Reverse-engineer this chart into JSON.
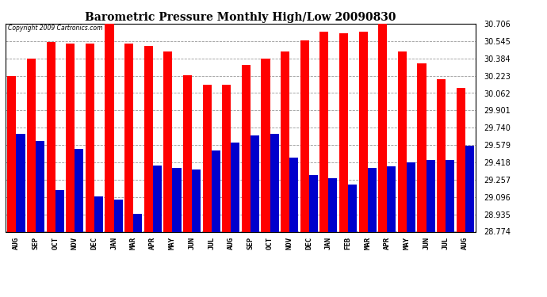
{
  "title": "Barometric Pressure Monthly High/Low 20090830",
  "copyright": "Copyright 2009 Cartronics.com",
  "months": [
    "AUG",
    "SEP",
    "OCT",
    "NOV",
    "DEC",
    "JAN",
    "MAR",
    "APR",
    "MAY",
    "JUN",
    "JUL",
    "AUG",
    "SEP",
    "OCT",
    "NOV",
    "DEC",
    "JAN",
    "FEB",
    "MAR",
    "APR",
    "MAY",
    "JUN",
    "JUL",
    "AUG"
  ],
  "highs": [
    30.22,
    30.38,
    30.54,
    30.52,
    30.52,
    30.71,
    30.52,
    30.5,
    30.45,
    30.23,
    30.14,
    30.14,
    30.32,
    30.38,
    30.45,
    30.55,
    30.63,
    30.62,
    30.63,
    30.71,
    30.45,
    30.34,
    30.19,
    30.11
  ],
  "lows": [
    29.68,
    29.62,
    29.16,
    29.54,
    29.1,
    29.07,
    28.94,
    29.39,
    29.37,
    29.35,
    29.53,
    29.6,
    29.67,
    29.68,
    29.46,
    29.3,
    29.27,
    29.21,
    29.37,
    29.38,
    29.42,
    29.44,
    29.44,
    29.57
  ],
  "high_color": "#ff0000",
  "low_color": "#0000cc",
  "bg_color": "#ffffff",
  "plot_bg_color": "#ffffff",
  "grid_color": "#999999",
  "ymin": 28.774,
  "ymax": 30.706,
  "yticks": [
    28.774,
    28.935,
    29.096,
    29.257,
    29.418,
    29.579,
    29.74,
    29.901,
    30.062,
    30.223,
    30.384,
    30.545,
    30.706
  ],
  "figwidth": 6.9,
  "figheight": 3.75,
  "dpi": 100
}
